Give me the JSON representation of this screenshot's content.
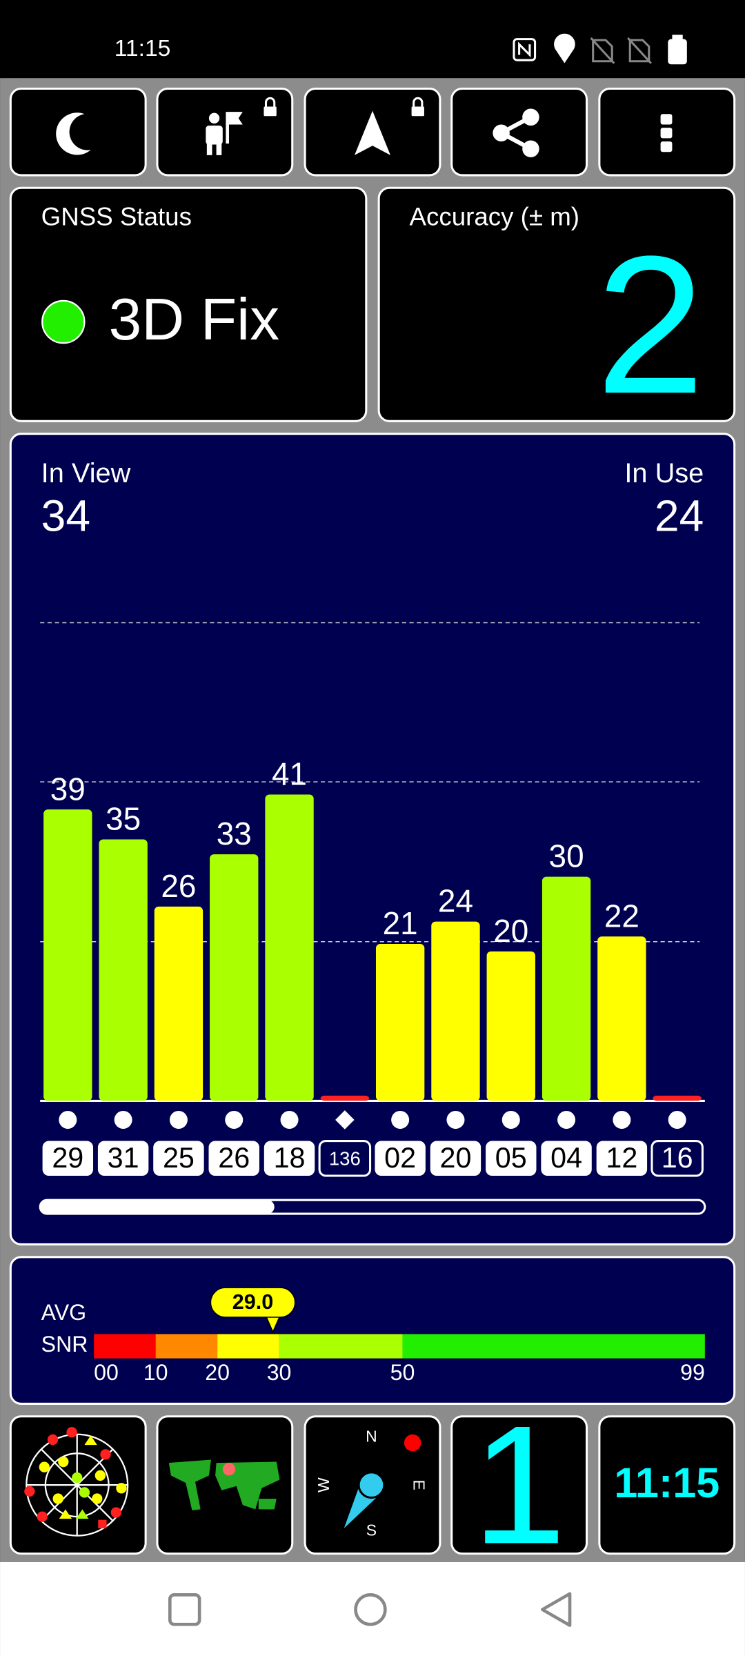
{
  "status_bar": {
    "time": "11:15"
  },
  "gnss_status": {
    "label": "GNSS Status",
    "value": "3D Fix"
  },
  "accuracy": {
    "label": "Accuracy (± m)",
    "value": "2"
  },
  "satellites": {
    "in_view_label": "In View",
    "in_view": "34",
    "in_use_label": "In Use",
    "in_use": "24",
    "chart": {
      "type": "bar",
      "categories": [
        "29",
        "31",
        "25",
        "26",
        "18",
        "136",
        "02",
        "20",
        "05",
        "04",
        "12",
        "16"
      ],
      "values": [
        39,
        35,
        26,
        33,
        41,
        0.7,
        21,
        24,
        20,
        30,
        22,
        0.7
      ],
      "value_labels": [
        "39",
        "35",
        "26",
        "33",
        "41",
        null,
        "21",
        "24",
        "20",
        "30",
        "22",
        null
      ],
      "colors": [
        "#aaff00",
        "#aaff00",
        "#ffff00",
        "#aaff00",
        "#aaff00",
        "#ff2020",
        "#ffff00",
        "#ffff00",
        "#ffff00",
        "#aaff00",
        "#ffff00",
        "#ff2020"
      ],
      "markers": [
        "circle",
        "circle",
        "circle",
        "circle",
        "circle",
        "diamond",
        "circle",
        "circle",
        "circle",
        "circle",
        "circle",
        "circle"
      ],
      "id_styles": [
        "filled",
        "filled",
        "filled",
        "filled",
        "filled",
        "outlined",
        "filled",
        "filled",
        "filled",
        "filled",
        "filled",
        "outlined"
      ],
      "ylim": [
        0,
        64
      ],
      "yticks": [
        21.3,
        42.7,
        64
      ],
      "grid": true
    }
  },
  "snr": {
    "avg_label": "AVG",
    "snr_label": "SNR",
    "average": {
      "value": 29,
      "label": "29.0"
    },
    "xlim": [
      0,
      99
    ],
    "xticks": [
      {
        "value": 0,
        "label": "00"
      },
      10,
      20,
      30,
      50,
      99
    ],
    "segments": [
      {
        "from": 0,
        "to": 10,
        "color": "#ff0000"
      },
      {
        "from": 10,
        "to": 20,
        "color": "#ff8800"
      },
      {
        "from": 20,
        "to": 30,
        "color": "#ffff00"
      },
      {
        "from": 30,
        "to": 50,
        "color": "#aaff00"
      },
      {
        "from": 50,
        "to": 99,
        "color": "#22ee00"
      }
    ]
  },
  "tiles": {
    "sky_count": "1",
    "clock": "11:15",
    "compass": {
      "n": "N",
      "e": "E",
      "s": "S",
      "w": "W"
    }
  }
}
